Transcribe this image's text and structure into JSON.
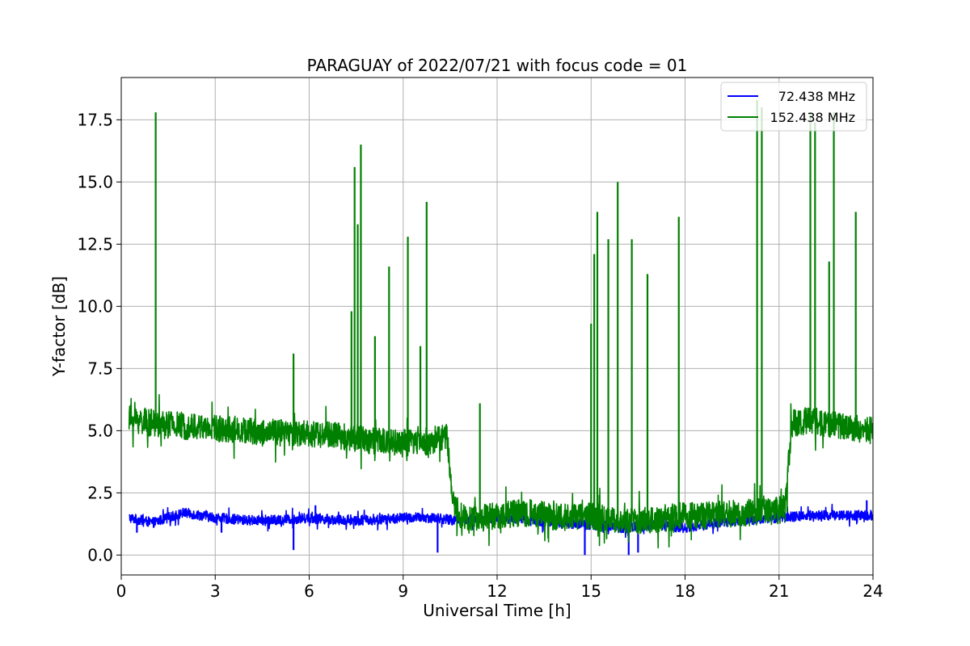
{
  "chart_data": {
    "type": "line",
    "title": "PARAGUAY of 2022/07/21 with focus code = 01",
    "xlabel": "Universal Time [h]",
    "ylabel": "Y-factor [dB]",
    "xlim": [
      0,
      24
    ],
    "ylim": [
      -0.8,
      19.2
    ],
    "xticks": [
      0,
      3,
      6,
      9,
      12,
      15,
      18,
      21,
      24
    ],
    "xtick_labels": [
      "0",
      "3",
      "6",
      "9",
      "12",
      "15",
      "18",
      "21",
      "24"
    ],
    "yticks": [
      0.0,
      2.5,
      5.0,
      7.5,
      10.0,
      12.5,
      15.0,
      17.5
    ],
    "ytick_labels": [
      "0.0",
      "2.5",
      "5.0",
      "7.5",
      "10.0",
      "12.5",
      "15.0",
      "17.5"
    ],
    "grid": true,
    "legend_position": "top-right",
    "series": [
      {
        "name": "72.438 MHz",
        "color": "#0000ff",
        "x_start": 0.25,
        "x_end": 24.0,
        "baseline": [
          [
            0.25,
            1.5
          ],
          [
            1.0,
            1.3
          ],
          [
            2.0,
            1.7
          ],
          [
            3.0,
            1.5
          ],
          [
            4.0,
            1.4
          ],
          [
            5.0,
            1.4
          ],
          [
            6.0,
            1.5
          ],
          [
            7.0,
            1.4
          ],
          [
            8.0,
            1.4
          ],
          [
            9.0,
            1.5
          ],
          [
            10.0,
            1.5
          ],
          [
            10.6,
            1.4
          ],
          [
            12.0,
            1.5
          ],
          [
            13.0,
            1.4
          ],
          [
            14.0,
            1.3
          ],
          [
            15.0,
            1.2
          ],
          [
            16.0,
            1.1
          ],
          [
            17.0,
            1.2
          ],
          [
            18.0,
            1.1
          ],
          [
            19.0,
            1.3
          ],
          [
            20.0,
            1.4
          ],
          [
            21.0,
            1.5
          ],
          [
            22.0,
            1.6
          ],
          [
            23.0,
            1.6
          ],
          [
            24.0,
            1.6
          ]
        ],
        "noise": 0.2,
        "spikes": [
          [
            0.5,
            0.9
          ],
          [
            3.2,
            0.9
          ],
          [
            5.5,
            0.2
          ],
          [
            10.1,
            0.1
          ],
          [
            14.8,
            0.0
          ],
          [
            16.2,
            0.0
          ],
          [
            16.5,
            0.1
          ],
          [
            23.8,
            2.2
          ],
          [
            6.2,
            2.0
          ]
        ]
      },
      {
        "name": "152.438 MHz",
        "color": "#008000",
        "x_start": 0.25,
        "x_end": 24.0,
        "baseline": [
          [
            0.25,
            5.5
          ],
          [
            1.0,
            5.3
          ],
          [
            2.0,
            5.2
          ],
          [
            3.0,
            5.1
          ],
          [
            4.0,
            5.0
          ],
          [
            5.0,
            4.9
          ],
          [
            6.0,
            4.9
          ],
          [
            7.0,
            4.8
          ],
          [
            8.0,
            4.6
          ],
          [
            9.0,
            4.5
          ],
          [
            10.0,
            4.6
          ],
          [
            10.4,
            4.8
          ],
          [
            10.6,
            2.0
          ],
          [
            11.0,
            1.4
          ],
          [
            12.0,
            1.6
          ],
          [
            13.0,
            1.7
          ],
          [
            14.0,
            1.5
          ],
          [
            15.0,
            1.6
          ],
          [
            16.0,
            1.3
          ],
          [
            17.0,
            1.4
          ],
          [
            18.0,
            1.6
          ],
          [
            19.0,
            1.6
          ],
          [
            20.0,
            1.7
          ],
          [
            21.0,
            1.8
          ],
          [
            21.2,
            1.9
          ],
          [
            21.4,
            5.3
          ],
          [
            22.0,
            5.4
          ],
          [
            23.0,
            5.2
          ],
          [
            24.0,
            5.0
          ]
        ],
        "noise": 0.55,
        "spikes": [
          [
            1.1,
            17.8
          ],
          [
            5.5,
            8.1
          ],
          [
            7.35,
            9.8
          ],
          [
            7.45,
            15.6
          ],
          [
            7.55,
            13.3
          ],
          [
            7.65,
            16.5
          ],
          [
            8.1,
            8.8
          ],
          [
            8.55,
            11.6
          ],
          [
            9.15,
            12.8
          ],
          [
            9.55,
            8.4
          ],
          [
            9.75,
            14.2
          ],
          [
            11.45,
            6.1
          ],
          [
            15.0,
            9.3
          ],
          [
            15.1,
            12.1
          ],
          [
            15.2,
            13.8
          ],
          [
            15.55,
            12.7
          ],
          [
            15.85,
            15.0
          ],
          [
            16.3,
            12.7
          ],
          [
            16.8,
            11.3
          ],
          [
            17.8,
            13.6
          ],
          [
            20.3,
            18.3
          ],
          [
            20.45,
            18.0
          ],
          [
            22.0,
            17.8
          ],
          [
            22.15,
            17.4
          ],
          [
            22.6,
            11.8
          ],
          [
            22.75,
            17.8
          ],
          [
            23.45,
            13.8
          ]
        ]
      }
    ]
  }
}
